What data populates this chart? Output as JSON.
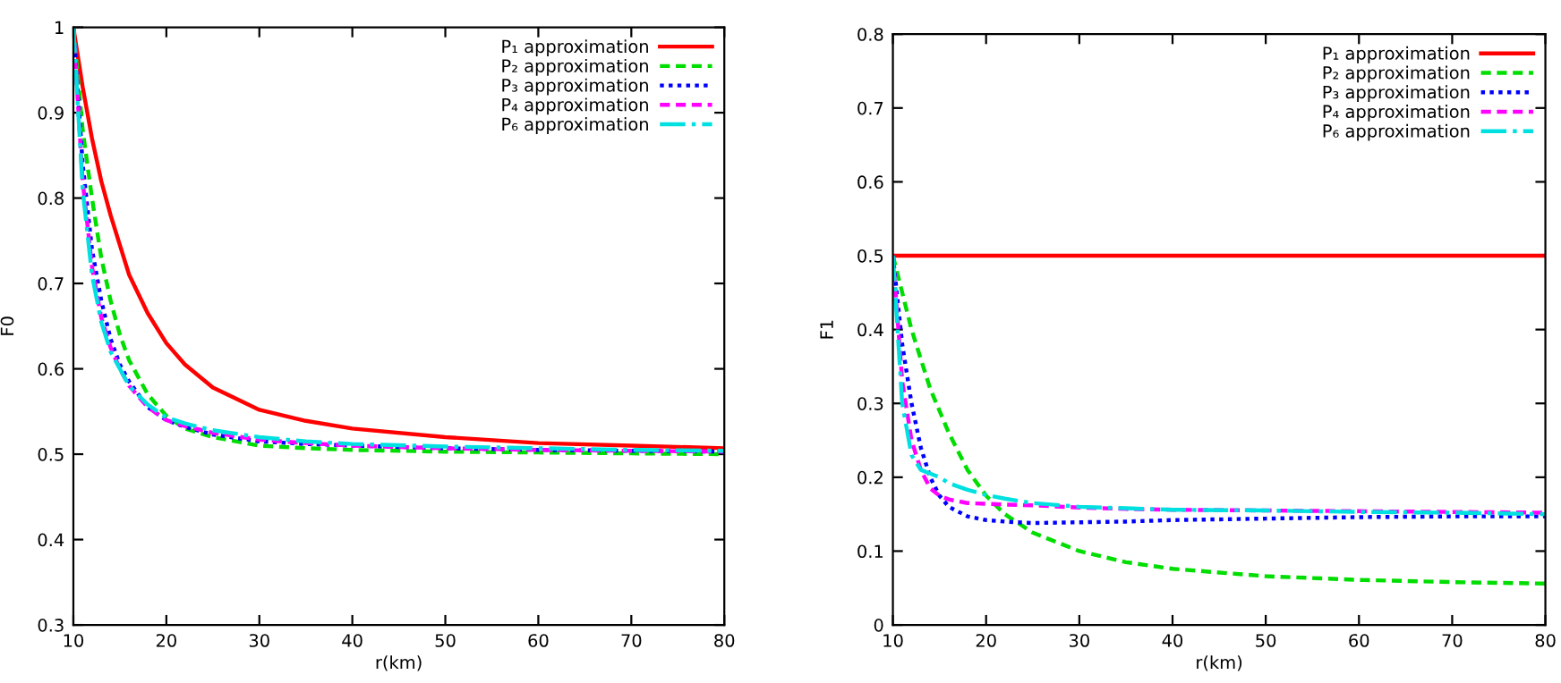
{
  "chart_data": [
    {
      "type": "line",
      "xlabel": "r(km)",
      "ylabel": "F0",
      "xlim": [
        10,
        80
      ],
      "ylim": [
        0.3,
        1
      ],
      "xticks": [
        10,
        20,
        30,
        40,
        50,
        60,
        70,
        80
      ],
      "yticks": [
        0.3,
        0.4,
        0.5,
        0.6,
        0.7,
        0.8,
        0.9,
        1
      ],
      "grid": false,
      "legend": "top right",
      "marker": "none",
      "x": [
        10,
        11,
        12,
        13,
        14,
        15,
        16,
        18,
        20,
        22,
        25,
        30,
        35,
        40,
        50,
        60,
        70,
        80
      ],
      "series": [
        {
          "name": "P₁ approximation",
          "color": "#ff0000",
          "line_style": "solid",
          "values": [
            1.0,
            0.93,
            0.87,
            0.82,
            0.78,
            0.745,
            0.71,
            0.665,
            0.63,
            0.605,
            0.578,
            0.552,
            0.539,
            0.53,
            0.52,
            0.513,
            0.51,
            0.507
          ]
        },
        {
          "name": "P₂ approximation",
          "color": "#00dd00",
          "line_style": "dashed",
          "values": [
            1.0,
            0.88,
            0.8,
            0.73,
            0.68,
            0.64,
            0.61,
            0.57,
            0.545,
            0.53,
            0.52,
            0.51,
            0.507,
            0.505,
            0.503,
            0.502,
            0.501,
            0.5
          ]
        },
        {
          "name": "P₃ approximation",
          "color": "#0000ff",
          "line_style": "dotted",
          "values": [
            1.0,
            0.84,
            0.74,
            0.68,
            0.635,
            0.605,
            0.585,
            0.555,
            0.54,
            0.532,
            0.523,
            0.515,
            0.512,
            0.51,
            0.507,
            0.505,
            0.504,
            0.503
          ]
        },
        {
          "name": "P₄ approximation",
          "color": "#ff00ff",
          "line_style": "dashed",
          "values": [
            1.0,
            0.82,
            0.72,
            0.66,
            0.625,
            0.6,
            0.58,
            0.555,
            0.54,
            0.533,
            0.525,
            0.517,
            0.513,
            0.51,
            0.507,
            0.505,
            0.504,
            0.503
          ]
        },
        {
          "name": "P₆ approximation",
          "color": "#00e0e0",
          "line_style": "dashdot",
          "values": [
            1.0,
            0.81,
            0.71,
            0.655,
            0.62,
            0.6,
            0.58,
            0.558,
            0.543,
            0.536,
            0.528,
            0.52,
            0.515,
            0.512,
            0.509,
            0.507,
            0.505,
            0.504
          ]
        }
      ]
    },
    {
      "type": "line",
      "xlabel": "r(km)",
      "ylabel": "F1",
      "xlim": [
        10,
        80
      ],
      "ylim": [
        0,
        0.8
      ],
      "xticks": [
        10,
        20,
        30,
        40,
        50,
        60,
        70,
        80
      ],
      "yticks": [
        0,
        0.1,
        0.2,
        0.3,
        0.4,
        0.5,
        0.6,
        0.7,
        0.8
      ],
      "grid": false,
      "legend": "top right",
      "marker": "none",
      "x": [
        10,
        11,
        12,
        13,
        14,
        15,
        16,
        18,
        20,
        22,
        25,
        30,
        35,
        40,
        50,
        60,
        70,
        80
      ],
      "series": [
        {
          "name": "P₁ approximation",
          "color": "#ff0000",
          "line_style": "solid",
          "values": [
            0.5,
            0.5,
            0.5,
            0.5,
            0.5,
            0.5,
            0.5,
            0.5,
            0.5,
            0.5,
            0.5,
            0.5,
            0.5,
            0.5,
            0.5,
            0.5,
            0.5,
            0.5
          ]
        },
        {
          "name": "P₂ approximation",
          "color": "#00dd00",
          "line_style": "dashed",
          "values": [
            0.5,
            0.45,
            0.4,
            0.36,
            0.32,
            0.29,
            0.26,
            0.21,
            0.175,
            0.15,
            0.125,
            0.1,
            0.085,
            0.076,
            0.066,
            0.061,
            0.058,
            0.056
          ]
        },
        {
          "name": "P₃ approximation",
          "color": "#0000ff",
          "line_style": "dotted",
          "values": [
            0.5,
            0.38,
            0.3,
            0.24,
            0.2,
            0.175,
            0.16,
            0.147,
            0.142,
            0.14,
            0.138,
            0.139,
            0.14,
            0.142,
            0.144,
            0.146,
            0.147,
            0.147
          ]
        },
        {
          "name": "P₄ approximation",
          "color": "#ff00ff",
          "line_style": "dashed",
          "values": [
            0.5,
            0.33,
            0.25,
            0.21,
            0.185,
            0.175,
            0.17,
            0.165,
            0.164,
            0.163,
            0.162,
            0.159,
            0.157,
            0.156,
            0.155,
            0.154,
            0.153,
            0.152
          ]
        },
        {
          "name": "P₆ approximation",
          "color": "#00e0e0",
          "line_style": "dashdot",
          "values": [
            0.5,
            0.3,
            0.23,
            0.21,
            0.205,
            0.2,
            0.192,
            0.183,
            0.176,
            0.171,
            0.165,
            0.16,
            0.158,
            0.156,
            0.155,
            0.153,
            0.152,
            0.15
          ]
        }
      ]
    }
  ]
}
